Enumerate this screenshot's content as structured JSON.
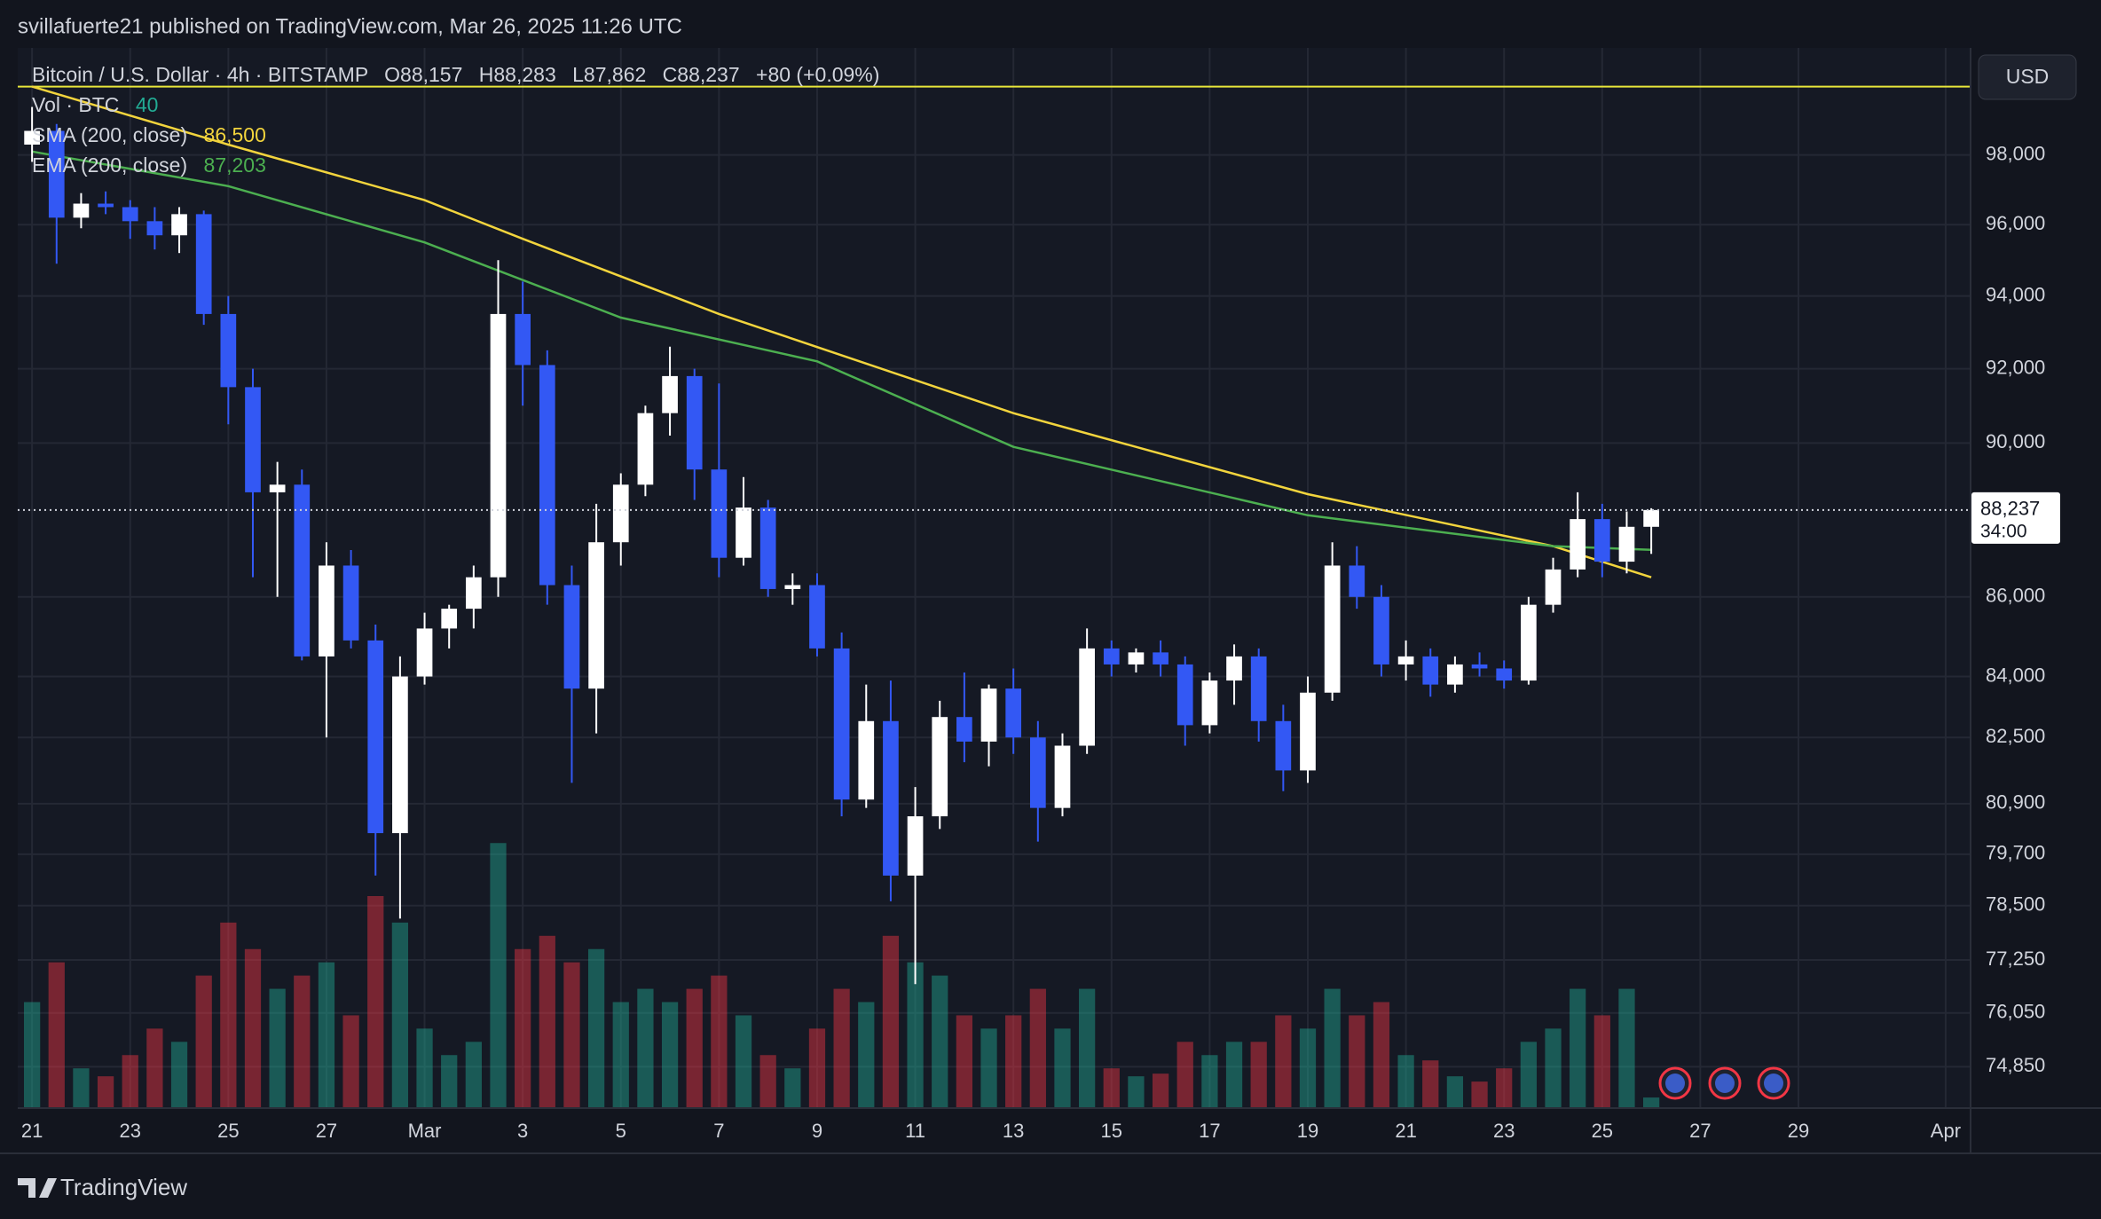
{
  "banner": "svillafuerte21 published on TradingView.com, Mar 26, 2025 11:26 UTC",
  "footer": {
    "logo": "TradingView"
  },
  "currency_button": "USD",
  "chart_data": {
    "type": "candlestick",
    "title": "Bitcoin / U.S. Dollar · 4h · BITSTAMP",
    "ohlc_readout": [
      "O88,157",
      "H88,283",
      "L87,862",
      "C88,237"
    ],
    "change": "+80 (+0.09%)",
    "x": [
      "2025-02-21T00:00Z",
      "2025-02-21T12:00Z",
      "2025-02-22T00:00Z",
      "2025-02-22T12:00Z",
      "2025-02-23T00:00Z",
      "2025-02-23T12:00Z",
      "2025-02-24T00:00Z",
      "2025-02-24T12:00Z",
      "2025-02-25T00:00Z",
      "2025-02-25T12:00Z",
      "2025-02-26T00:00Z",
      "2025-02-26T12:00Z",
      "2025-02-27T00:00Z",
      "2025-02-27T12:00Z",
      "2025-02-28T00:00Z",
      "2025-02-28T12:00Z",
      "2025-03-01T00:00Z",
      "2025-03-01T12:00Z",
      "2025-03-02T00:00Z",
      "2025-03-02T12:00Z",
      "2025-03-03T00:00Z",
      "2025-03-03T12:00Z",
      "2025-03-04T00:00Z",
      "2025-03-04T12:00Z",
      "2025-03-05T00:00Z",
      "2025-03-05T12:00Z",
      "2025-03-06T00:00Z",
      "2025-03-06T12:00Z",
      "2025-03-07T00:00Z",
      "2025-03-07T12:00Z",
      "2025-03-08T00:00Z",
      "2025-03-08T12:00Z",
      "2025-03-09T00:00Z",
      "2025-03-09T12:00Z",
      "2025-03-10T00:00Z",
      "2025-03-10T12:00Z",
      "2025-03-11T00:00Z",
      "2025-03-11T12:00Z",
      "2025-03-12T00:00Z",
      "2025-03-12T12:00Z",
      "2025-03-13T00:00Z",
      "2025-03-13T12:00Z",
      "2025-03-14T00:00Z",
      "2025-03-14T12:00Z",
      "2025-03-15T00:00Z",
      "2025-03-15T12:00Z",
      "2025-03-16T00:00Z",
      "2025-03-16T12:00Z",
      "2025-03-17T00:00Z",
      "2025-03-17T12:00Z",
      "2025-03-18T00:00Z",
      "2025-03-18T12:00Z",
      "2025-03-19T00:00Z",
      "2025-03-19T12:00Z",
      "2025-03-20T00:00Z",
      "2025-03-20T12:00Z",
      "2025-03-21T00:00Z",
      "2025-03-21T12:00Z",
      "2025-03-22T00:00Z",
      "2025-03-22T12:00Z",
      "2025-03-23T00:00Z",
      "2025-03-23T12:00Z",
      "2025-03-24T00:00Z",
      "2025-03-24T12:00Z",
      "2025-03-25T00:00Z",
      "2025-03-25T12:00Z",
      "2025-03-26T00:00Z"
    ],
    "candles": [
      [
        98300,
        99400,
        97800,
        98700
      ],
      [
        98700,
        98900,
        94900,
        96200
      ],
      [
        96200,
        96900,
        95900,
        96600
      ],
      [
        96600,
        96950,
        96300,
        96500
      ],
      [
        96500,
        96700,
        95600,
        96100
      ],
      [
        96100,
        96500,
        95300,
        95700
      ],
      [
        95700,
        96500,
        95200,
        96300
      ],
      [
        96300,
        96400,
        93200,
        93500
      ],
      [
        93500,
        94000,
        90500,
        91500
      ],
      [
        91500,
        92000,
        86500,
        88700
      ],
      [
        88700,
        89500,
        86000,
        88900
      ],
      [
        88900,
        89300,
        84400,
        84500
      ],
      [
        84500,
        87400,
        82500,
        86800
      ],
      [
        86800,
        87200,
        84700,
        84900
      ],
      [
        84900,
        85300,
        79200,
        80200
      ],
      [
        80200,
        84500,
        78200,
        84000
      ],
      [
        84000,
        85600,
        83800,
        85200
      ],
      [
        85200,
        85800,
        84700,
        85700
      ],
      [
        85700,
        86800,
        85200,
        86500
      ],
      [
        86500,
        95000,
        86000,
        93500
      ],
      [
        93500,
        94400,
        91000,
        92100
      ],
      [
        92100,
        92500,
        85800,
        86300
      ],
      [
        86300,
        86800,
        81400,
        83700
      ],
      [
        83700,
        88400,
        82600,
        87400
      ],
      [
        87400,
        89200,
        86800,
        88900
      ],
      [
        88900,
        91000,
        88600,
        90800
      ],
      [
        90800,
        92600,
        90200,
        91800
      ],
      [
        91800,
        92000,
        88500,
        89300
      ],
      [
        89300,
        91600,
        86500,
        87000
      ],
      [
        87000,
        89100,
        86800,
        88300
      ],
      [
        88300,
        88500,
        86000,
        86200
      ],
      [
        86200,
        86600,
        85800,
        86300
      ],
      [
        86300,
        86600,
        84500,
        84700
      ],
      [
        84700,
        85100,
        80600,
        81000
      ],
      [
        81000,
        83800,
        80800,
        82900
      ],
      [
        82900,
        83900,
        78600,
        79200
      ],
      [
        79200,
        81300,
        76700,
        80600
      ],
      [
        80600,
        83400,
        80300,
        83000
      ],
      [
        83000,
        84100,
        81900,
        82400
      ],
      [
        82400,
        83800,
        81800,
        83700
      ],
      [
        83700,
        84200,
        82100,
        82500
      ],
      [
        82500,
        82900,
        80000,
        80800
      ],
      [
        80800,
        82600,
        80600,
        82300
      ],
      [
        82300,
        85200,
        82100,
        84700
      ],
      [
        84700,
        84900,
        84000,
        84300
      ],
      [
        84300,
        84700,
        84100,
        84600
      ],
      [
        84600,
        84900,
        84000,
        84300
      ],
      [
        84300,
        84500,
        82300,
        82800
      ],
      [
        82800,
        84100,
        82600,
        83900
      ],
      [
        83900,
        84800,
        83300,
        84500
      ],
      [
        84500,
        84700,
        82400,
        82900
      ],
      [
        82900,
        83300,
        81200,
        81700
      ],
      [
        81700,
        84000,
        81400,
        83600
      ],
      [
        83600,
        87400,
        83400,
        86800
      ],
      [
        86800,
        87300,
        85700,
        86000
      ],
      [
        86000,
        86300,
        84000,
        84300
      ],
      [
        84300,
        84900,
        83900,
        84500
      ],
      [
        84500,
        84700,
        83500,
        83800
      ],
      [
        83800,
        84500,
        83600,
        84300
      ],
      [
        84300,
        84600,
        84000,
        84200
      ],
      [
        84200,
        84400,
        83700,
        83900
      ],
      [
        83900,
        86000,
        83800,
        85800
      ],
      [
        85800,
        87000,
        85600,
        86700
      ],
      [
        86700,
        88700,
        86500,
        88000
      ],
      [
        88000,
        88400,
        86500,
        86900
      ],
      [
        86900,
        88200,
        86600,
        87800
      ],
      [
        87800,
        88283,
        87100,
        88237
      ]
    ],
    "up_color": "#ffffff",
    "down_color": "#3358f4",
    "volume": {
      "name": "Vol · BTC",
      "values": [
        400,
        550,
        150,
        120,
        200,
        300,
        250,
        500,
        700,
        600,
        450,
        500,
        550,
        350,
        800,
        700,
        300,
        200,
        250,
        1000,
        600,
        650,
        550,
        600,
        400,
        450,
        400,
        450,
        500,
        350,
        200,
        150,
        300,
        450,
        400,
        650,
        550,
        500,
        350,
        300,
        350,
        450,
        300,
        450,
        150,
        120,
        130,
        250,
        200,
        250,
        250,
        350,
        300,
        450,
        350,
        400,
        200,
        180,
        120,
        100,
        150,
        250,
        300,
        450,
        350,
        450,
        40
      ],
      "ylim": [
        0,
        4000
      ],
      "up_color": "#22ab94",
      "down_color": "#f23645"
    },
    "sma": {
      "name": "SMA (200, close)",
      "color": "#f2d43d",
      "x": [
        "2025-02-21T00:00Z",
        "2025-02-25T00:00Z",
        "2025-03-01T00:00Z",
        "2025-03-03T00:00Z",
        "2025-03-07T00:00Z",
        "2025-03-13T00:00Z",
        "2025-03-19T00:00Z",
        "2025-03-24T00:00Z",
        "2025-03-26T00:00Z"
      ],
      "values": [
        100000,
        98300,
        96700,
        95600,
        93500,
        90800,
        88650,
        87300,
        86500
      ],
      "value_label": "86,500"
    },
    "ema": {
      "name": "EMA (200, close)",
      "color": "#4caf50",
      "x": [
        "2025-02-21T00:00Z",
        "2025-02-25T00:00Z",
        "2025-03-01T00:00Z",
        "2025-03-05T00:00Z",
        "2025-03-09T00:00Z",
        "2025-03-13T00:00Z",
        "2025-03-19T00:00Z",
        "2025-03-24T00:00Z",
        "2025-03-26T00:00Z"
      ],
      "values": [
        98100,
        97100,
        95500,
        93400,
        92200,
        89900,
        88100,
        87300,
        87203
      ],
      "value_label": "87,203"
    },
    "horizontal_line": {
      "value": 100000,
      "color": "#e8e63a"
    },
    "last_price": {
      "value": 88237,
      "label": "88,237",
      "countdown": "34:00"
    },
    "xlim": [
      "2025-02-20T17:00Z",
      "2025-04-01T11:45Z"
    ],
    "xticks": [
      {
        "value": "2025-02-21T00:00Z",
        "label": "21"
      },
      {
        "value": "2025-02-23T00:00Z",
        "label": "23"
      },
      {
        "value": "2025-02-25T00:00Z",
        "label": "25"
      },
      {
        "value": "2025-02-27T00:00Z",
        "label": "27"
      },
      {
        "value": "2025-03-01T00:00Z",
        "label": "Mar"
      },
      {
        "value": "2025-03-03T00:00Z",
        "label": "3"
      },
      {
        "value": "2025-03-05T00:00Z",
        "label": "5"
      },
      {
        "value": "2025-03-07T00:00Z",
        "label": "7"
      },
      {
        "value": "2025-03-09T00:00Z",
        "label": "9"
      },
      {
        "value": "2025-03-11T00:00Z",
        "label": "11"
      },
      {
        "value": "2025-03-13T00:00Z",
        "label": "13"
      },
      {
        "value": "2025-03-15T00:00Z",
        "label": "15"
      },
      {
        "value": "2025-03-17T00:00Z",
        "label": "17"
      },
      {
        "value": "2025-03-19T00:00Z",
        "label": "19"
      },
      {
        "value": "2025-03-21T00:00Z",
        "label": "21"
      },
      {
        "value": "2025-03-23T00:00Z",
        "label": "23"
      },
      {
        "value": "2025-03-25T00:00Z",
        "label": "25"
      },
      {
        "value": "2025-03-27T00:00Z",
        "label": "27"
      },
      {
        "value": "2025-03-29T00:00Z",
        "label": "29"
      },
      {
        "value": "2025-04-01T00:00Z",
        "label": "Apr"
      }
    ],
    "ylim": [
      73940,
      101150
    ],
    "log_scale": true,
    "grid": true,
    "yticks": [
      {
        "value": 98000,
        "label": "98,000"
      },
      {
        "value": 96000,
        "label": "96,000"
      },
      {
        "value": 94000,
        "label": "94,000"
      },
      {
        "value": 92000,
        "label": "92,000"
      },
      {
        "value": 90000,
        "label": "90,000"
      },
      {
        "value": 86000,
        "label": "86,000"
      },
      {
        "value": 84000,
        "label": "84,000"
      },
      {
        "value": 82500,
        "label": "82,500"
      },
      {
        "value": 80900,
        "label": "80,900"
      },
      {
        "value": 79700,
        "label": "79,700"
      },
      {
        "value": 78500,
        "label": "78,500"
      },
      {
        "value": 77250,
        "label": "77,250"
      },
      {
        "value": 76050,
        "label": "76,050"
      },
      {
        "value": 74850,
        "label": "74,850"
      }
    ]
  }
}
